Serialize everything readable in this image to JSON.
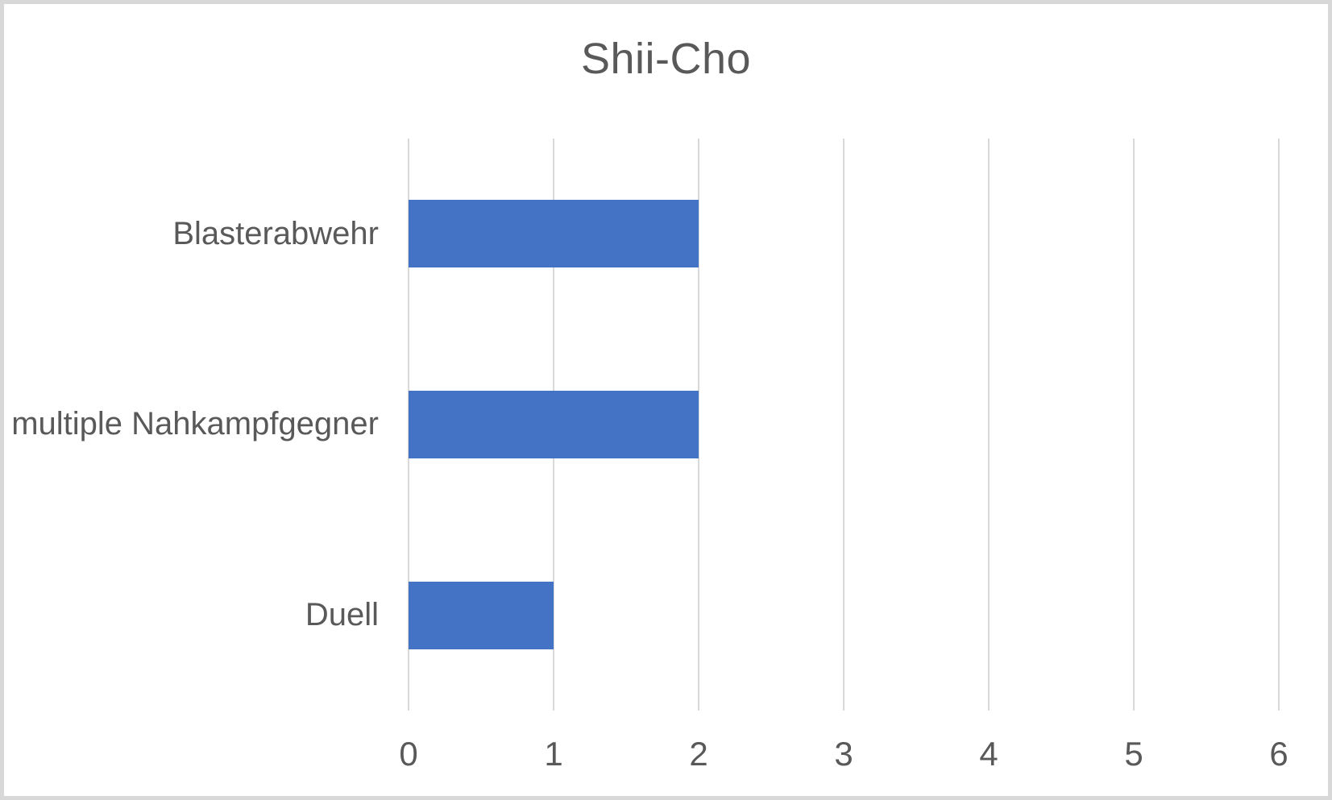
{
  "chart_data": {
    "type": "bar",
    "orientation": "horizontal",
    "title": "Shii-Cho",
    "categories": [
      "Blasterabwehr",
      "multiple Nahkampfgegner",
      "Duell"
    ],
    "values": [
      2,
      2,
      1
    ],
    "xlabel": "",
    "ylabel": "",
    "xlim": [
      0,
      6
    ],
    "x_ticks": [
      0,
      1,
      2,
      3,
      4,
      5,
      6
    ],
    "grid": "vertical-gridlines-on",
    "legend": "none",
    "colors": {
      "bar": "#4472C4",
      "gridline": "#D9D9D9",
      "text": "#595959",
      "frame": "#D8D8D8",
      "background": "#FFFFFF"
    }
  }
}
